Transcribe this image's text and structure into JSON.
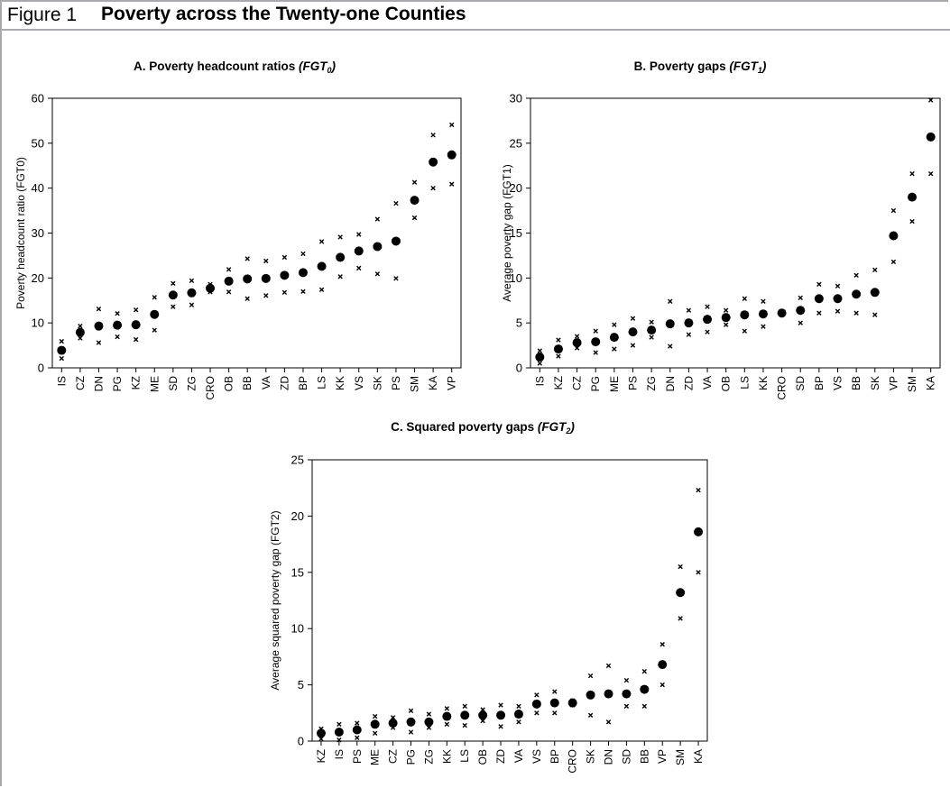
{
  "figure": {
    "label": "Figure 1",
    "title": "Poverty across the Twenty-one Counties"
  },
  "chart_data": [
    {
      "type": "scatter",
      "title_main": "A. Poverty headcount ratios ",
      "title_index": "FGT",
      "title_sub": "0",
      "ylabel": "Poverty headcount ratio (FGT0)",
      "xlabel": "",
      "ylim": [
        0,
        60
      ],
      "yticks": [
        0,
        10,
        20,
        30,
        40,
        50,
        60
      ],
      "grid": false,
      "categories": [
        "IS",
        "CZ",
        "DN",
        "PG",
        "KZ",
        "ME",
        "SD",
        "ZG",
        "CRO",
        "OB",
        "BB",
        "VA",
        "ZD",
        "BP",
        "LS",
        "KK",
        "VS",
        "SK",
        "PS",
        "SM",
        "KA",
        "VP"
      ],
      "series": [
        {
          "role": "estimate",
          "marker": "filled-circle",
          "values": [
            3.9,
            7.9,
            9.3,
            9.5,
            9.6,
            11.9,
            16.2,
            16.7,
            17.7,
            19.3,
            19.8,
            19.9,
            20.6,
            21.2,
            22.6,
            24.6,
            26.0,
            27.0,
            28.2,
            37.3,
            45.8,
            47.4
          ]
        },
        {
          "role": "upper bound",
          "marker": "x",
          "values": [
            5.9,
            9.3,
            13.1,
            12.1,
            12.9,
            15.7,
            18.8,
            19.4,
            18.6,
            21.9,
            24.3,
            23.8,
            24.6,
            25.4,
            28.1,
            29.1,
            29.7,
            33.1,
            36.6,
            41.3,
            51.8,
            54.1
          ]
        },
        {
          "role": "lower bound",
          "marker": "x",
          "values": [
            2.1,
            6.6,
            5.6,
            6.9,
            6.3,
            8.4,
            13.6,
            14.0,
            16.9,
            16.9,
            15.4,
            16.1,
            16.8,
            17.0,
            17.4,
            20.3,
            22.2,
            20.9,
            19.9,
            33.4,
            40.0,
            40.9
          ]
        }
      ]
    },
    {
      "type": "scatter",
      "title_main": "B. Poverty gaps ",
      "title_index": "FGT",
      "title_sub": "1",
      "ylabel": "Average poverty gap (FGT1)",
      "xlabel": "",
      "ylim": [
        0,
        30
      ],
      "yticks": [
        0,
        5,
        10,
        15,
        20,
        25,
        30
      ],
      "grid": false,
      "categories": [
        "IS",
        "KZ",
        "CZ",
        "PG",
        "ME",
        "PS",
        "ZG",
        "DN",
        "ZD",
        "VA",
        "OB",
        "LS",
        "KK",
        "CRO",
        "SD",
        "BP",
        "VS",
        "BB",
        "SK",
        "VP",
        "SM",
        "KA"
      ],
      "series": [
        {
          "role": "estimate",
          "marker": "filled-circle",
          "values": [
            1.2,
            2.1,
            2.8,
            2.9,
            3.4,
            4.0,
            4.2,
            4.9,
            5.0,
            5.4,
            5.6,
            5.9,
            6.0,
            6.1,
            6.4,
            7.7,
            7.7,
            8.2,
            8.4,
            14.7,
            19.0,
            25.7
          ]
        },
        {
          "role": "upper bound",
          "marker": "x",
          "values": [
            1.9,
            3.1,
            3.5,
            4.1,
            4.8,
            5.5,
            5.1,
            7.4,
            6.4,
            6.8,
            6.4,
            7.7,
            7.4,
            6.3,
            7.8,
            9.3,
            9.1,
            10.3,
            10.9,
            17.5,
            21.6,
            29.8
          ]
        },
        {
          "role": "lower bound",
          "marker": "x",
          "values": [
            0.5,
            1.3,
            2.2,
            1.7,
            2.1,
            2.5,
            3.4,
            2.4,
            3.7,
            4.0,
            4.8,
            4.1,
            4.6,
            5.9,
            5.0,
            6.1,
            6.3,
            6.1,
            5.9,
            11.8,
            16.3,
            21.6
          ]
        }
      ]
    },
    {
      "type": "scatter",
      "title_main": "C. Squared poverty gaps ",
      "title_index": "FGT",
      "title_sub": "2",
      "ylabel": "Average squared poverty gap (FGT2)",
      "xlabel": "",
      "ylim": [
        0,
        25
      ],
      "yticks": [
        0,
        5,
        10,
        15,
        20,
        25
      ],
      "grid": false,
      "categories": [
        "KZ",
        "IS",
        "PS",
        "ME",
        "CZ",
        "PG",
        "ZG",
        "KK",
        "LS",
        "OB",
        "ZD",
        "VA",
        "VS",
        "BP",
        "CRO",
        "SK",
        "DN",
        "SD",
        "BB",
        "VP",
        "SM",
        "KA"
      ],
      "series": [
        {
          "role": "estimate",
          "marker": "filled-circle",
          "values": [
            0.7,
            0.8,
            1.0,
            1.5,
            1.6,
            1.7,
            1.7,
            2.2,
            2.3,
            2.3,
            2.3,
            2.4,
            3.3,
            3.4,
            3.4,
            4.1,
            4.2,
            4.2,
            4.6,
            6.8,
            13.2,
            18.6
          ]
        },
        {
          "role": "upper bound",
          "marker": "x",
          "values": [
            1.1,
            1.5,
            1.6,
            2.2,
            2.1,
            2.7,
            2.4,
            2.9,
            3.1,
            2.8,
            3.2,
            3.1,
            4.1,
            4.4,
            3.6,
            5.8,
            6.7,
            5.4,
            6.2,
            8.6,
            15.5,
            22.3
          ]
        },
        {
          "role": "lower bound",
          "marker": "x",
          "values": [
            0.2,
            0.1,
            0.3,
            0.7,
            1.2,
            0.8,
            1.2,
            1.5,
            1.4,
            1.8,
            1.3,
            1.7,
            2.5,
            2.5,
            3.2,
            2.3,
            1.7,
            3.1,
            3.1,
            5.0,
            10.9,
            15.0
          ]
        }
      ]
    }
  ]
}
